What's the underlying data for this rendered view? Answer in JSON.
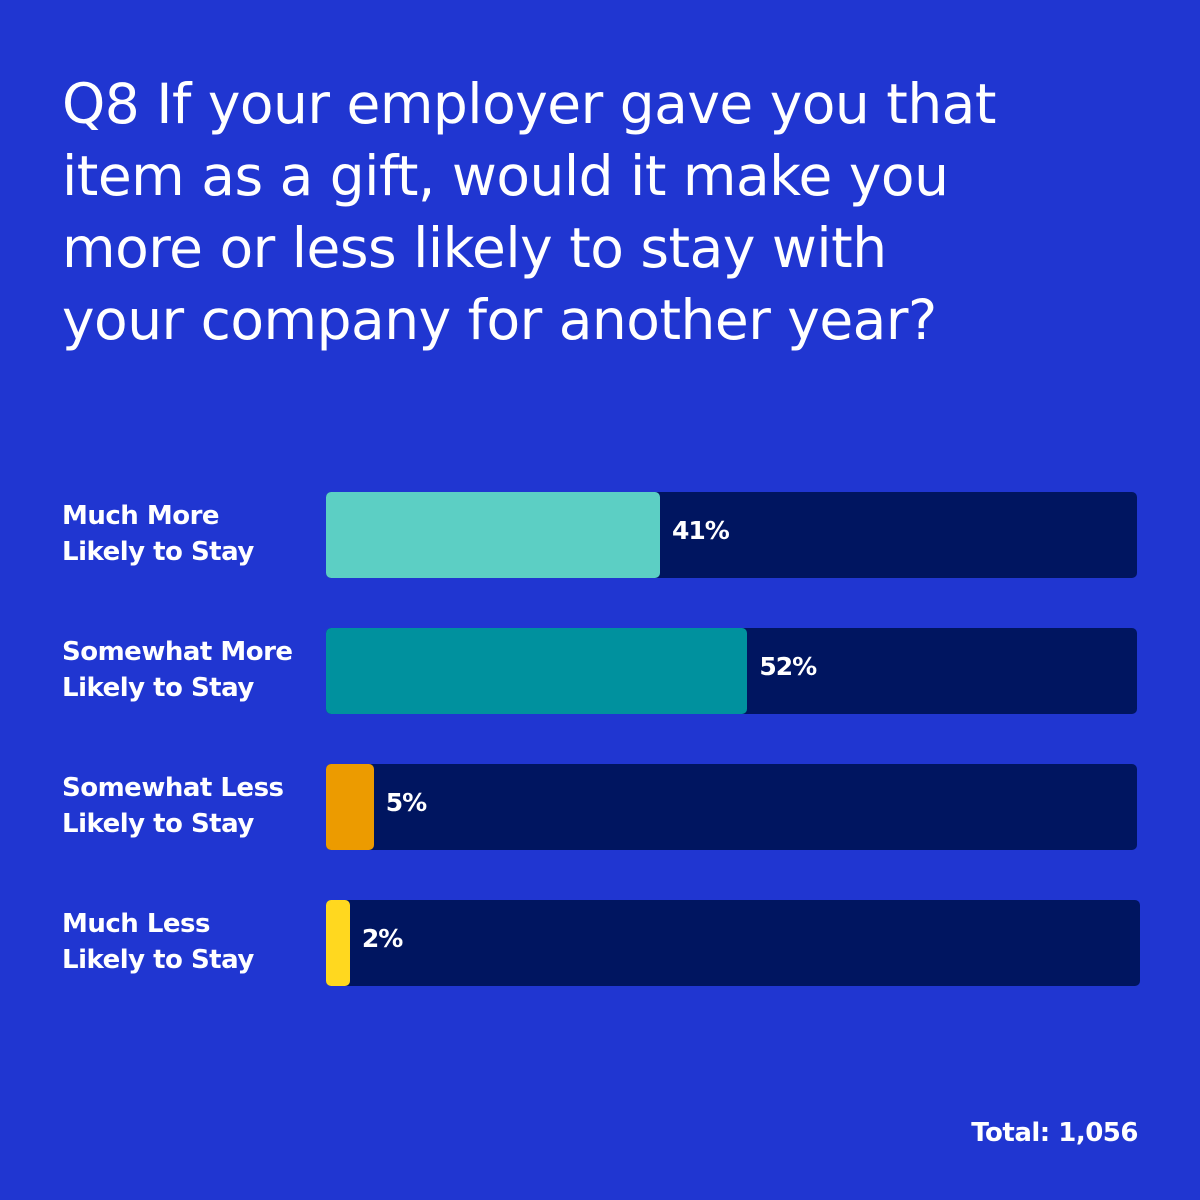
{
  "chart_data": {
    "type": "bar",
    "orientation": "horizontal",
    "title": "Q8 If your employer gave you that item as a gift, would it make you more or less likely to stay with your company for another year?",
    "categories": [
      "Much More Likely to Stay",
      "Somewhat More Likely to Stay",
      "Somewhat Less Likely to Stay",
      "Much Less Likely to Stay"
    ],
    "category_lines": [
      [
        "Much More",
        "Likely to Stay"
      ],
      [
        "Somewhat More",
        "Likely to Stay"
      ],
      [
        "Somewhat Less",
        "Likely to Stay"
      ],
      [
        "Much Less",
        "Likely to Stay"
      ]
    ],
    "values": [
      41,
      52,
      5,
      2
    ],
    "value_labels": [
      "41%",
      "52%",
      "5%",
      "2%"
    ],
    "unit": "%",
    "xlim": [
      0,
      100
    ],
    "xlabel": "",
    "ylabel": "",
    "grid": false,
    "legend": "none",
    "footnote": "Total: 1,056"
  },
  "colors": {
    "background": "#2036d1",
    "track": "#001560",
    "text": "#ffffff",
    "bars": [
      "#5ccfc4",
      "#00919e",
      "#ec9b00",
      "#ffd81f"
    ]
  }
}
